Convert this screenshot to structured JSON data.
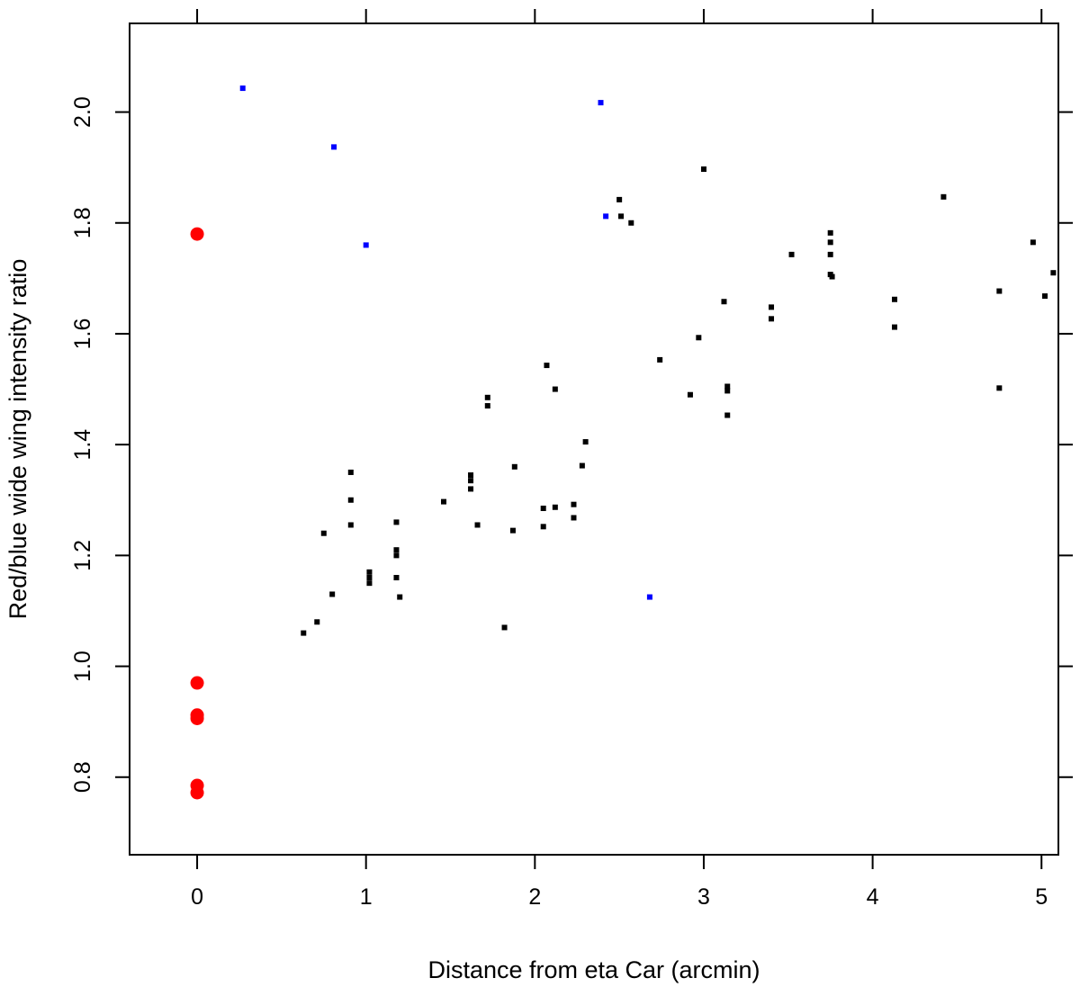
{
  "chart_data": {
    "type": "scatter",
    "title": "",
    "xlabel": "Distance from eta Car (arcmin)",
    "ylabel": "Red/blue wide wing intensity ratio",
    "xlim": [
      -0.4,
      5.1
    ],
    "ylim": [
      0.66,
      2.16
    ],
    "xticks": [
      0,
      1,
      2,
      3,
      4,
      5
    ],
    "xtick_labels": [
      "0",
      "1",
      "2",
      "3",
      "4",
      "5"
    ],
    "yticks": [
      0.8,
      1.0,
      1.2,
      1.4,
      1.6,
      1.8,
      2.0
    ],
    "ytick_labels": [
      "0.8",
      "1.0",
      "1.2",
      "1.4",
      "1.6",
      "1.8",
      "2.0"
    ],
    "grid": false,
    "colors": {
      "black_points": "#000000",
      "blue_points": "#0000ff",
      "red_points": "#ff0000",
      "frame": "#000000"
    },
    "series": [
      {
        "marker": "square",
        "color": "#000000",
        "points": [
          [
            0.63,
            1.06
          ],
          [
            0.71,
            1.08
          ],
          [
            0.75,
            1.24
          ],
          [
            0.8,
            1.13
          ],
          [
            0.91,
            1.35
          ],
          [
            0.91,
            1.3
          ],
          [
            0.91,
            1.255
          ],
          [
            1.02,
            1.17
          ],
          [
            1.02,
            1.16
          ],
          [
            1.02,
            1.15
          ],
          [
            1.18,
            1.26
          ],
          [
            1.18,
            1.21
          ],
          [
            1.18,
            1.2
          ],
          [
            1.18,
            1.16
          ],
          [
            1.2,
            1.125
          ],
          [
            1.46,
            1.297
          ],
          [
            1.62,
            1.345
          ],
          [
            1.62,
            1.335
          ],
          [
            1.62,
            1.32
          ],
          [
            1.66,
            1.255
          ],
          [
            1.72,
            1.485
          ],
          [
            1.72,
            1.47
          ],
          [
            1.82,
            1.07
          ],
          [
            1.87,
            1.245
          ],
          [
            1.88,
            1.36
          ],
          [
            2.05,
            1.285
          ],
          [
            2.05,
            1.252
          ],
          [
            2.07,
            1.543
          ],
          [
            2.12,
            1.5
          ],
          [
            2.12,
            1.287
          ],
          [
            2.23,
            1.292
          ],
          [
            2.23,
            1.268
          ],
          [
            2.28,
            1.362
          ],
          [
            2.3,
            1.405
          ],
          [
            2.5,
            1.842
          ],
          [
            2.51,
            1.812
          ],
          [
            2.57,
            1.8
          ],
          [
            2.74,
            1.553
          ],
          [
            2.92,
            1.49
          ],
          [
            2.97,
            1.593
          ],
          [
            3.0,
            1.897
          ],
          [
            3.12,
            1.658
          ],
          [
            3.14,
            1.505
          ],
          [
            3.14,
            1.497
          ],
          [
            3.14,
            1.453
          ],
          [
            3.4,
            1.648
          ],
          [
            3.4,
            1.627
          ],
          [
            3.52,
            1.743
          ],
          [
            3.75,
            1.782
          ],
          [
            3.75,
            1.765
          ],
          [
            3.75,
            1.743
          ],
          [
            3.75,
            1.707
          ],
          [
            3.76,
            1.703
          ],
          [
            4.13,
            1.662
          ],
          [
            4.13,
            1.612
          ],
          [
            4.42,
            1.847
          ],
          [
            4.75,
            1.677
          ],
          [
            4.75,
            1.502
          ],
          [
            4.95,
            1.765
          ],
          [
            5.02,
            1.668
          ],
          [
            5.07,
            1.71
          ]
        ]
      },
      {
        "marker": "square",
        "color": "#0000ff",
        "points": [
          [
            0.27,
            2.043
          ],
          [
            0.81,
            1.937
          ],
          [
            1.0,
            1.76
          ],
          [
            2.39,
            2.017
          ],
          [
            2.42,
            1.812
          ],
          [
            2.68,
            1.125
          ]
        ]
      },
      {
        "marker": "circle",
        "color": "#ff0000",
        "points": [
          [
            0.0,
            1.78
          ],
          [
            0.0,
            0.97
          ],
          [
            0.0,
            0.912
          ],
          [
            0.0,
            0.906
          ],
          [
            0.0,
            0.785
          ],
          [
            0.0,
            0.772
          ]
        ]
      }
    ]
  }
}
